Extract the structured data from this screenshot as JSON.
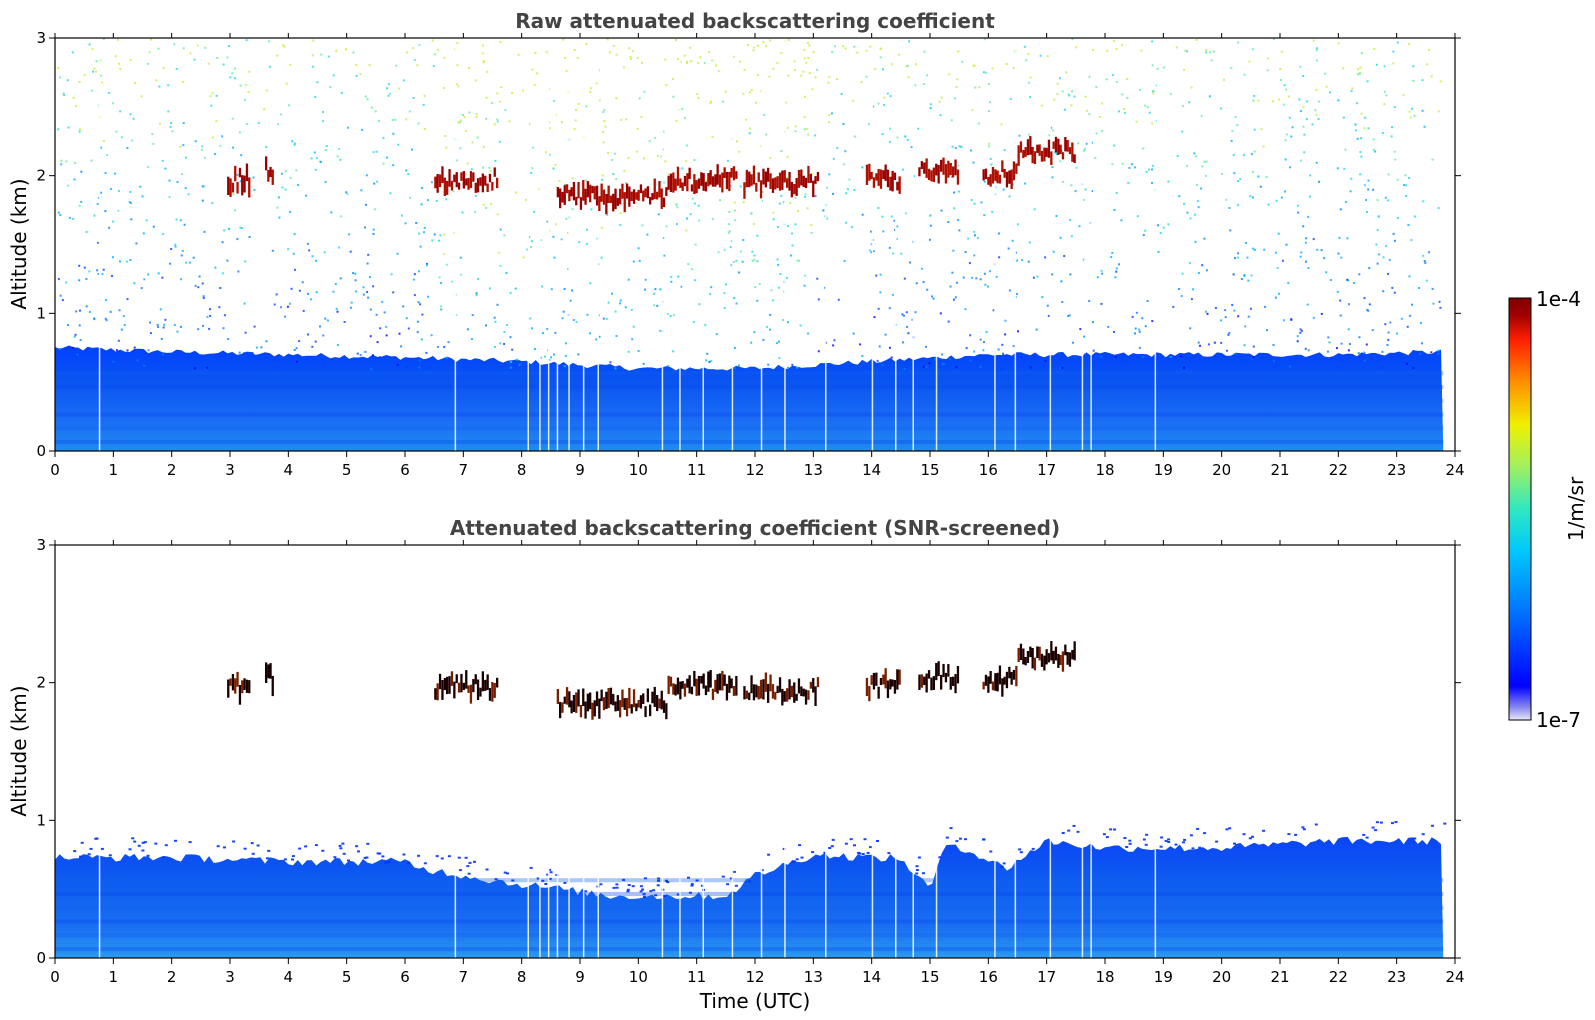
{
  "figure": {
    "colorbar": {
      "label": "1/m/sr",
      "max_label": "1e-4",
      "min_label": "1e-7",
      "scale": "log",
      "range": [
        1e-07,
        0.0001
      ],
      "colormap": [
        "#e8e8f8",
        "#8888f0",
        "#0000ff",
        "#0070ff",
        "#00c8ff",
        "#30e8c0",
        "#a0f060",
        "#f0f000",
        "#ff9000",
        "#ff2000",
        "#a00000",
        "#800000"
      ]
    },
    "xlabel": "Time (UTC)"
  },
  "chart_data": [
    {
      "type": "heatmap",
      "title": "Raw attenuated backscattering coefficient",
      "xlabel": "",
      "ylabel": "Altitude (km)",
      "xlim": [
        0,
        24
      ],
      "ylim": [
        0,
        3
      ],
      "xticks": [
        "0",
        "1",
        "2",
        "3",
        "4",
        "5",
        "6",
        "7",
        "8",
        "9",
        "10",
        "11",
        "12",
        "13",
        "14",
        "15",
        "16",
        "17",
        "18",
        "19",
        "20",
        "21",
        "22",
        "23",
        "24"
      ],
      "yticks": [
        "0",
        "1",
        "2",
        "3"
      ],
      "boundary_layer": {
        "time": [
          0,
          2,
          4,
          6,
          8,
          10,
          12,
          14,
          16,
          18,
          20,
          22,
          23.8
        ],
        "top_km": [
          0.75,
          0.72,
          0.7,
          0.68,
          0.65,
          0.6,
          0.6,
          0.65,
          0.7,
          0.7,
          0.7,
          0.7,
          0.72
        ]
      },
      "cloud_layer": [
        {
          "t_start": 2.95,
          "t_end": 3.35,
          "alt_km": 1.97
        },
        {
          "t_start": 3.6,
          "t_end": 3.75,
          "alt_km": 2.03
        },
        {
          "t_start": 6.5,
          "t_end": 7.6,
          "alt_km": 1.97
        },
        {
          "t_start": 8.6,
          "t_end": 10.5,
          "alt_km": 1.85
        },
        {
          "t_start": 10.5,
          "t_end": 11.7,
          "alt_km": 1.97
        },
        {
          "t_start": 11.8,
          "t_end": 13.1,
          "alt_km": 1.95
        },
        {
          "t_start": 13.9,
          "t_end": 14.5,
          "alt_km": 1.98
        },
        {
          "t_start": 14.8,
          "t_end": 15.5,
          "alt_km": 2.05
        },
        {
          "t_start": 15.9,
          "t_end": 16.5,
          "alt_km": 2.02
        },
        {
          "t_start": 16.5,
          "t_end": 17.5,
          "alt_km": 2.18
        }
      ],
      "data_end_time": 23.8
    },
    {
      "type": "heatmap",
      "title": "Attenuated backscattering coefficient (SNR-screened)",
      "xlabel": "Time (UTC)",
      "ylabel": "Altitude (km)",
      "xlim": [
        0,
        24
      ],
      "ylim": [
        0,
        3
      ],
      "xticks": [
        "0",
        "1",
        "2",
        "3",
        "4",
        "5",
        "6",
        "7",
        "8",
        "9",
        "10",
        "11",
        "12",
        "13",
        "14",
        "15",
        "16",
        "17",
        "18",
        "19",
        "20",
        "21",
        "22",
        "23",
        "24"
      ],
      "yticks": [
        "0",
        "1",
        "2",
        "3"
      ],
      "boundary_layer": {
        "time": [
          0,
          2,
          4,
          6,
          6.3,
          7.7,
          8.7,
          9.5,
          10.5,
          11.5,
          12.0,
          13.0,
          14.5,
          15.0,
          15.3,
          16.3,
          17.0,
          18.0,
          20.0,
          22.0,
          23.8
        ],
        "top_km": [
          0.73,
          0.73,
          0.7,
          0.7,
          0.65,
          0.55,
          0.5,
          0.45,
          0.45,
          0.45,
          0.6,
          0.75,
          0.72,
          0.5,
          0.85,
          0.65,
          0.85,
          0.8,
          0.8,
          0.85,
          0.85
        ]
      },
      "cloud_layer": [
        {
          "t_start": 2.95,
          "t_end": 3.35,
          "alt_km": 1.97
        },
        {
          "t_start": 3.6,
          "t_end": 3.75,
          "alt_km": 2.03
        },
        {
          "t_start": 6.5,
          "t_end": 7.6,
          "alt_km": 1.97
        },
        {
          "t_start": 8.6,
          "t_end": 10.5,
          "alt_km": 1.85
        },
        {
          "t_start": 10.5,
          "t_end": 11.7,
          "alt_km": 1.97
        },
        {
          "t_start": 11.8,
          "t_end": 13.1,
          "alt_km": 1.95
        },
        {
          "t_start": 13.9,
          "t_end": 14.5,
          "alt_km": 1.98
        },
        {
          "t_start": 14.8,
          "t_end": 15.5,
          "alt_km": 2.05
        },
        {
          "t_start": 15.9,
          "t_end": 16.5,
          "alt_km": 2.02
        },
        {
          "t_start": 16.5,
          "t_end": 17.5,
          "alt_km": 2.18
        }
      ],
      "data_end_time": 23.8
    }
  ]
}
